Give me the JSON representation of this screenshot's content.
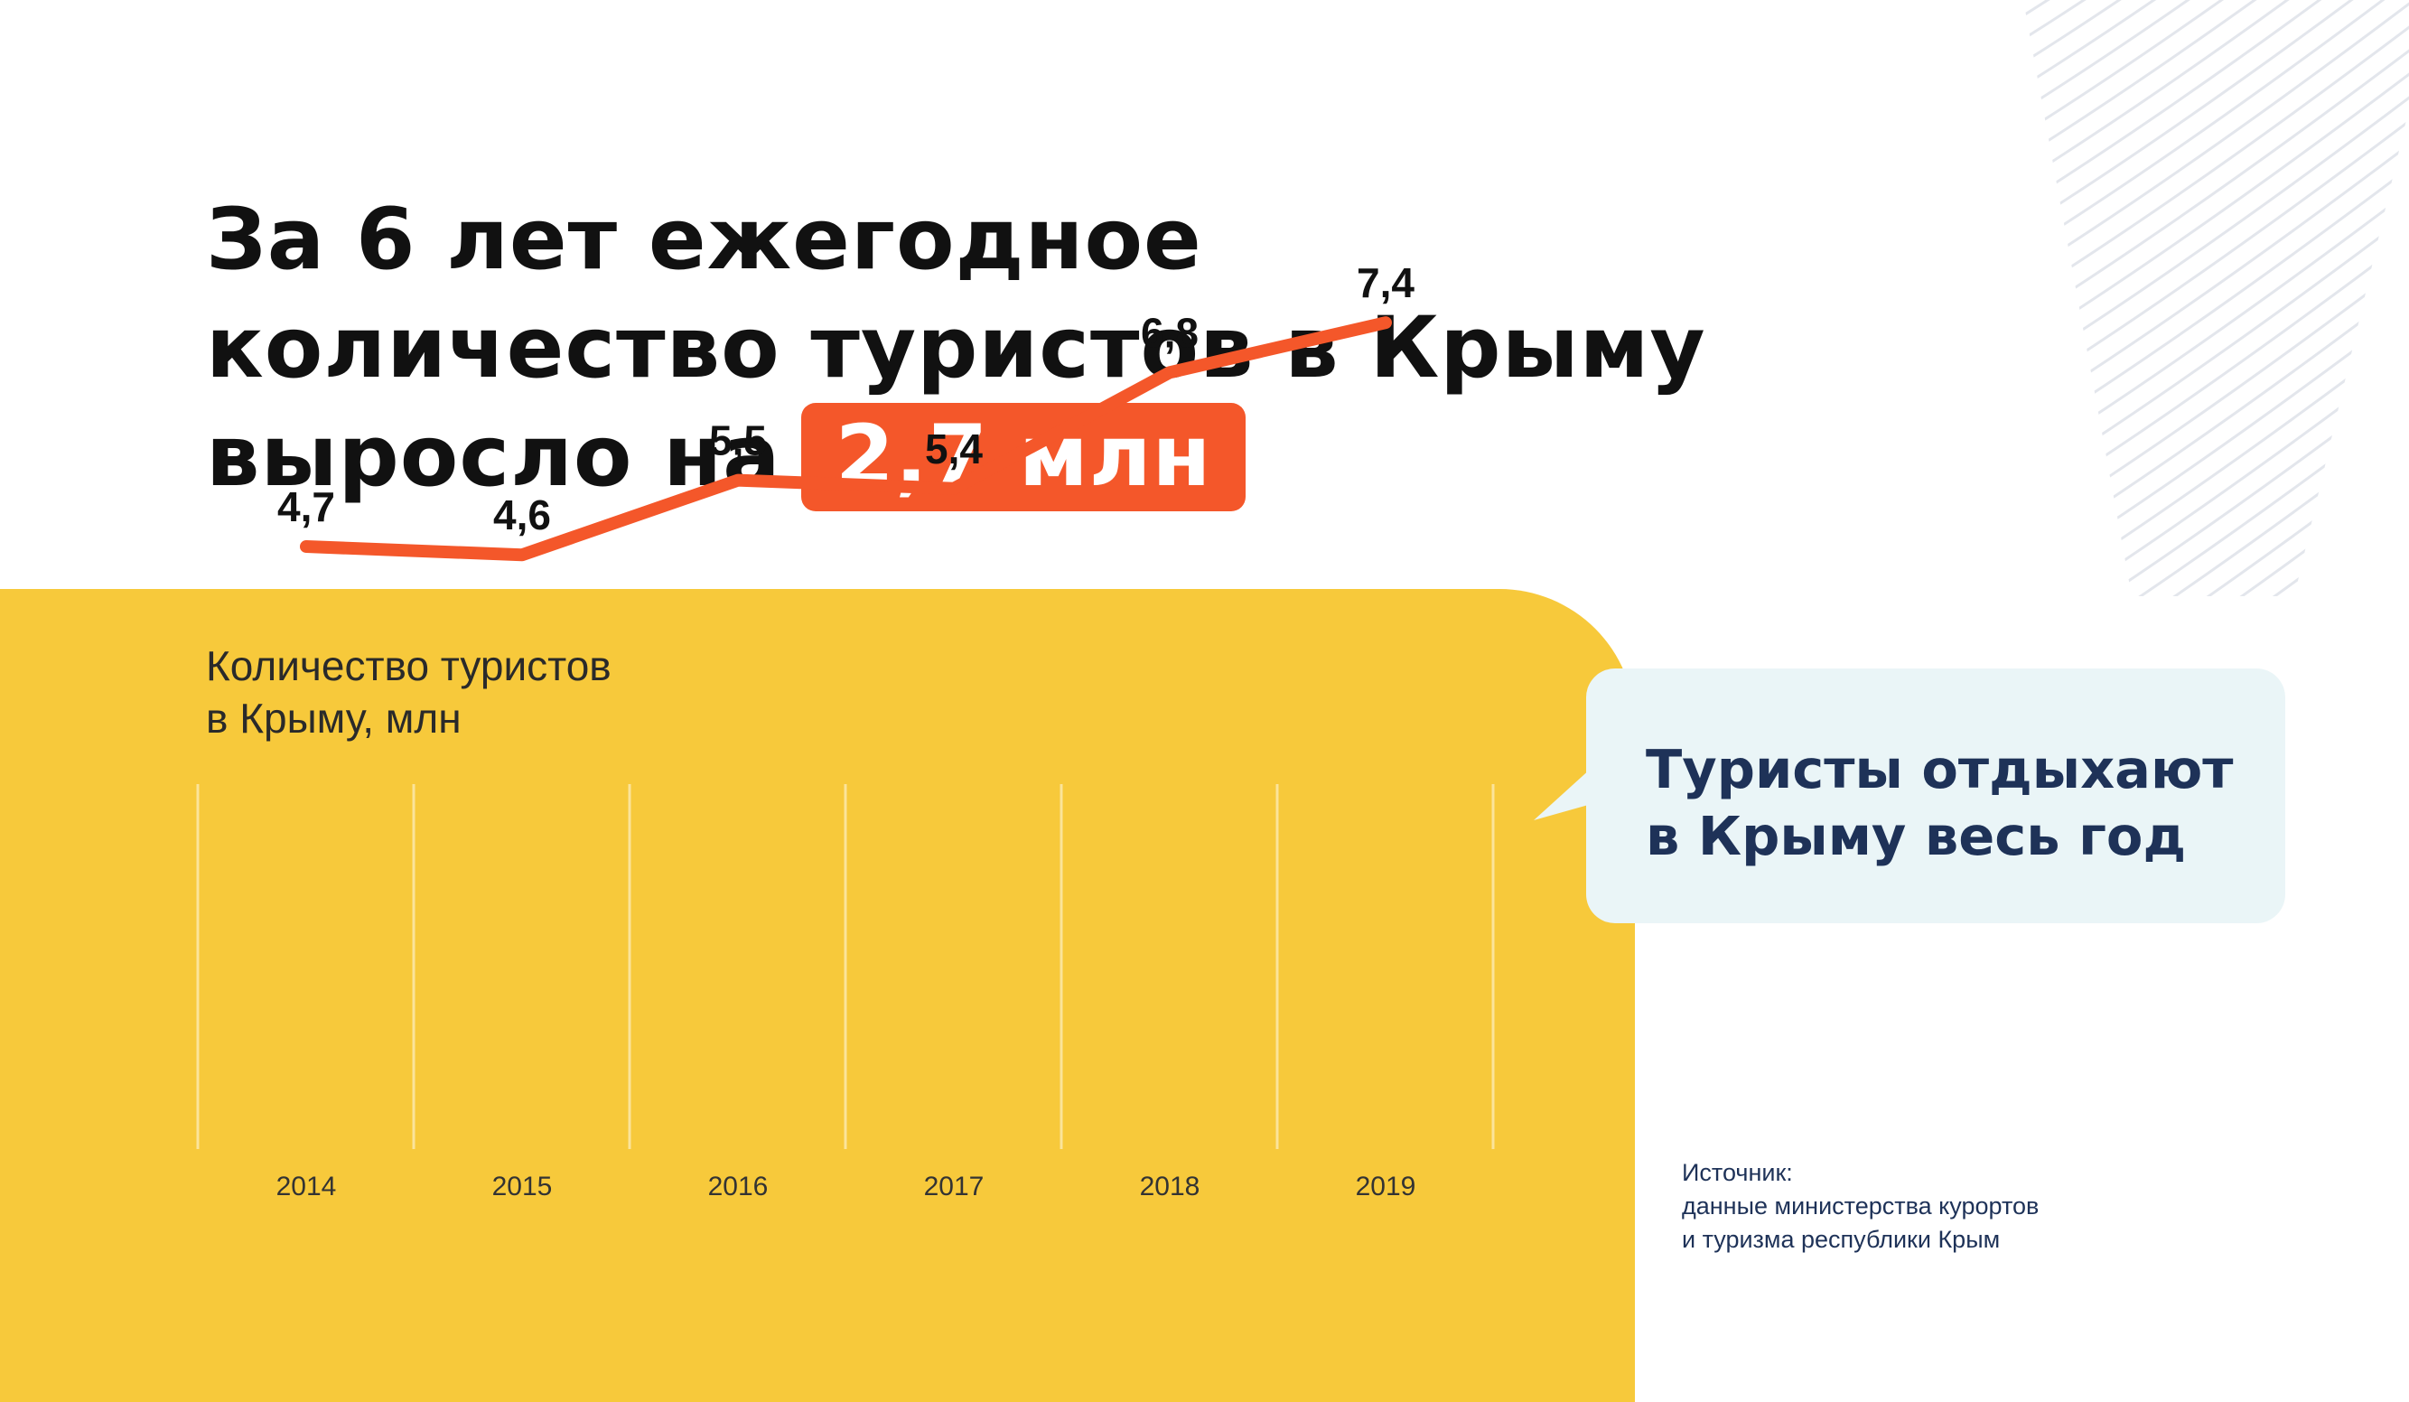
{
  "headline": {
    "line1": "За 6 лет ежегодное",
    "line2": "количество туристов в Крыму",
    "line3": "выросло на",
    "highlight": "2,7 млн"
  },
  "chart_label": {
    "line1": "Количество туристов",
    "line2": "в Крыму, млн"
  },
  "callout": {
    "line1": "Туристы отдыхают",
    "line2": "в Крыму весь год"
  },
  "source": {
    "label": "Источник:",
    "line1": "данные министерства курортов",
    "line2": "и туризма республики Крым"
  },
  "colors": {
    "panel": "#f7c93b",
    "line": "#f4572a",
    "highlight": "#f4572a",
    "callout_bg": "#eaf5f7",
    "dark_text": "#1e3258"
  },
  "chart_data": {
    "type": "line",
    "title": "Количество туристов в Крыму, млн",
    "x": [
      "2014",
      "2015",
      "2016",
      "2017",
      "2018",
      "2019"
    ],
    "series": [
      {
        "values": [
          4.7,
          4.6,
          5.5,
          5.4,
          6.8,
          7.4
        ],
        "labels": [
          "4,7",
          "4,6",
          "5,5",
          "5,4",
          "6,8",
          "7,4"
        ]
      }
    ],
    "grid": "vertical"
  }
}
